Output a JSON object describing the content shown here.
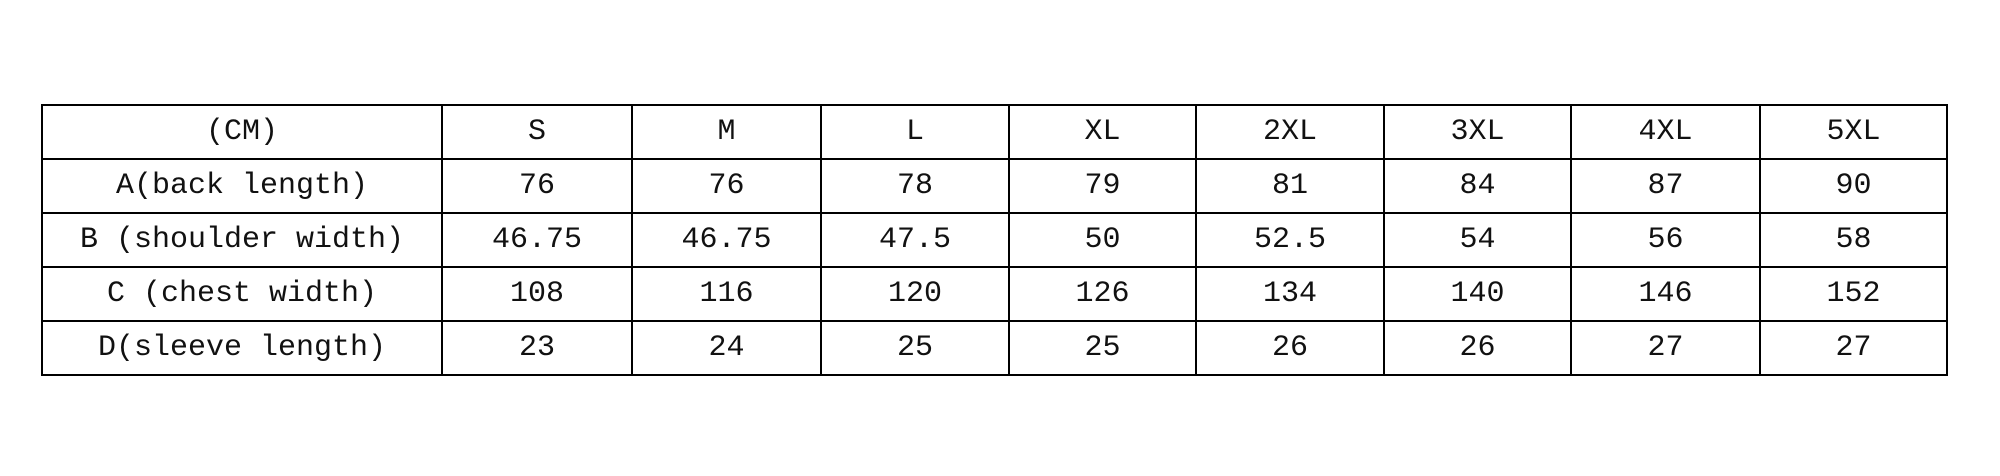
{
  "table": {
    "header": [
      "(CM)",
      "S",
      "M",
      "L",
      "XL",
      "2XL",
      "3XL",
      "4XL",
      "5XL"
    ],
    "rows": [
      [
        "A(back length)",
        "76",
        "76",
        "78",
        "79",
        "81",
        "84",
        "87",
        "90"
      ],
      [
        "B (shoulder width)",
        "46.75",
        "46.75",
        "47.5",
        "50",
        "52.5",
        "54",
        "56",
        "58"
      ],
      [
        "C (chest width)",
        "108",
        "116",
        "120",
        "126",
        "134",
        "140",
        "146",
        "152"
      ],
      [
        "D(sleeve length)",
        "23",
        "24",
        "25",
        "25",
        "26",
        "26",
        "27",
        "27"
      ]
    ]
  }
}
